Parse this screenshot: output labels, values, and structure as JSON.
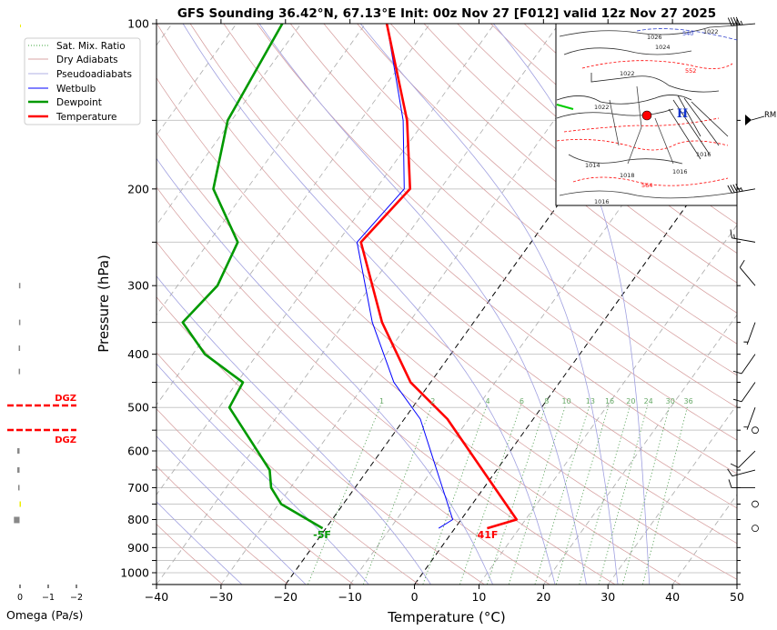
{
  "chart_data": {
    "type": "line",
    "subtype": "skew-t log-p",
    "title": "GFS Sounding 36.42°N, 67.13°E Init: 00z Nov 27 [F012] valid 12z Nov 27 2025",
    "xlabel": "Temperature (°C)",
    "ylabel": "Pressure (hPa)",
    "xlim": [
      -40,
      50
    ],
    "ylim": [
      1050,
      100
    ],
    "x_ticks": [
      "−40",
      "−30",
      "−20",
      "−10",
      "0",
      "10",
      "20",
      "30",
      "40",
      "50"
    ],
    "x_tick_values": [
      -40,
      -30,
      -20,
      -10,
      0,
      10,
      20,
      30,
      40,
      50
    ],
    "y_ticks": [
      "100",
      "200",
      "300",
      "400",
      "500",
      "600",
      "700",
      "800",
      "900",
      "1000"
    ],
    "y_tick_values": [
      100,
      200,
      300,
      400,
      500,
      600,
      700,
      800,
      900,
      1000
    ],
    "pressure_gridlines": [
      100,
      150,
      200,
      250,
      300,
      350,
      400,
      450,
      500,
      550,
      600,
      650,
      700,
      750,
      800,
      850,
      900,
      950,
      1000,
      1050
    ],
    "legend": {
      "placement": "top-left",
      "entries": [
        "Sat. Mix. Ratio",
        "Dry Adiabats",
        "Pseudoadiabats",
        "Wetbulb",
        "Dewpoint",
        "Temperature"
      ]
    },
    "series": [
      {
        "name": "Temperature",
        "color": "#ff0000",
        "p": [
          830,
          800,
          650,
          525,
          450,
          350,
          250,
          200,
          150,
          100
        ],
        "t": [
          5.0,
          8.6,
          -2.2,
          -13.3,
          -23.1,
          -34.2,
          -46.4,
          -44.7,
          -52.8,
          -66.7
        ]
      },
      {
        "name": "Dewpoint",
        "color": "#009900",
        "p": [
          830,
          750,
          700,
          650,
          500,
          450,
          400,
          350,
          300,
          250,
          200,
          150,
          100
        ],
        "t": [
          -20.5,
          -29.6,
          -33.0,
          -35.2,
          -48.4,
          -49.1,
          -58.1,
          -65.1,
          -63.8,
          -65.5,
          -75.2,
          -80.6,
          -82.9
        ]
      },
      {
        "name": "Wetbulb",
        "color": "#0000ff",
        "p": [
          830,
          800,
          650,
          525,
          450,
          350,
          250,
          200,
          150,
          100
        ],
        "t": [
          -2.5,
          -1.3,
          -9.3,
          -17.5,
          -25.7,
          -35.7,
          -47.0,
          -45.6,
          -53.4,
          -66.7
        ]
      }
    ],
    "surface_labels": {
      "dewpoint": "-5F",
      "temperature": "41F"
    },
    "mixing_ratio_labels": [
      "1",
      "2",
      "4",
      "6",
      "8",
      "10",
      "13",
      "16",
      "20",
      "24",
      "30",
      "36"
    ],
    "mixing_ratio_values": [
      1,
      2,
      4,
      6,
      8,
      10,
      13,
      16,
      20,
      24,
      30,
      36
    ],
    "highlight_isotherms": [
      -20,
      0
    ],
    "dry_adiabat_theta_K": [
      230,
      240,
      250,
      260,
      270,
      280,
      290,
      300,
      310,
      320,
      330,
      340,
      350,
      360,
      370,
      380,
      390,
      400,
      410,
      420,
      430,
      440,
      450,
      460
    ],
    "moist_adiabat_start_C": [
      -30,
      -20,
      -10,
      0,
      10,
      20,
      25,
      30,
      35
    ],
    "wind_barbs": [
      {
        "p": 100,
        "dir": 265,
        "spd": 45
      },
      {
        "p": 200,
        "dir": 260,
        "spd": 45
      },
      {
        "p": 250,
        "dir": 280,
        "spd": 15
      },
      {
        "p": 300,
        "dir": 320,
        "spd": 10
      },
      {
        "p": 350,
        "dir": 200,
        "spd": 5
      },
      {
        "p": 400,
        "dir": 215,
        "spd": 10
      },
      {
        "p": 450,
        "dir": 215,
        "spd": 10
      },
      {
        "p": 500,
        "dir": 200,
        "spd": 5
      },
      {
        "p": 550,
        "dir": 0,
        "spd": 0
      },
      {
        "p": 600,
        "dir": 225,
        "spd": 10
      },
      {
        "p": 650,
        "dir": 255,
        "spd": 10
      },
      {
        "p": 700,
        "dir": 270,
        "spd": 10
      },
      {
        "p": 750,
        "dir": 0,
        "spd": 0
      },
      {
        "p": 830,
        "dir": 0,
        "spd": 0
      }
    ],
    "storm_motion_label": "RM",
    "omega": {
      "xlabel": "Omega (Pa/s)",
      "ticks": [
        "0",
        "−1",
        "−2"
      ],
      "tick_values": [
        0,
        -1,
        -2
      ],
      "dgz_label": "DGZ",
      "dgz_bounds_hPa": [
        496,
        550
      ],
      "bars": [
        {
          "p": 300,
          "v": 0.02
        },
        {
          "p": 350,
          "v": 0.02
        },
        {
          "p": 390,
          "v": 0.03
        },
        {
          "p": 430,
          "v": 0.03
        },
        {
          "p": 600,
          "v": 0.08
        },
        {
          "p": 650,
          "v": 0.08
        },
        {
          "p": 700,
          "v": 0.05
        },
        {
          "p": 750,
          "v": -0.02
        },
        {
          "p": 800,
          "v": 0.2
        }
      ]
    }
  },
  "inset_map": {
    "labels": [
      "1026",
      "1024",
      "540",
      "1022",
      "552",
      "1022",
      "1022",
      "1014",
      "1018",
      "1016",
      "564",
      "1016",
      "1016"
    ],
    "high_label": "H"
  }
}
